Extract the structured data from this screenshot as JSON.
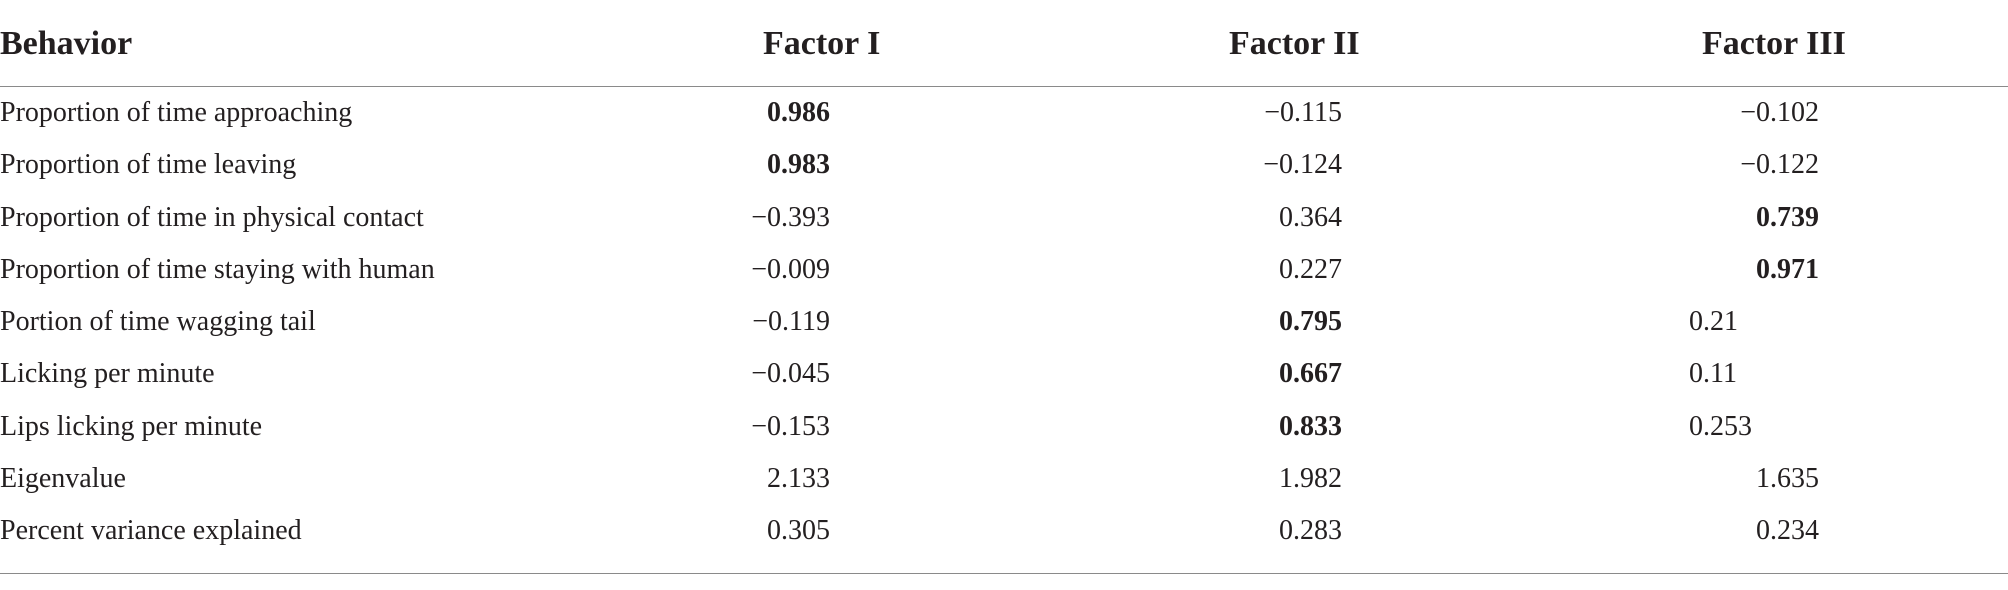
{
  "header": {
    "behavior": "Behavior",
    "factor1": "Factor I",
    "factor2": "Factor II",
    "factor3": "Factor III"
  },
  "rows": [
    {
      "label": "Proportion of time approaching",
      "f1": "0.986",
      "f2": "−0.115",
      "f3": "−0.102",
      "bold": [
        true,
        false,
        false
      ]
    },
    {
      "label": "Proportion of time leaving",
      "f1": "0.983",
      "f2": "−0.124",
      "f3": "−0.122",
      "bold": [
        true,
        false,
        false
      ]
    },
    {
      "label": "Proportion of time in physical contact",
      "f1": "−0.393",
      "f2": "0.364",
      "f3": "0.739",
      "bold": [
        false,
        false,
        true
      ]
    },
    {
      "label": "Proportion of time staying with human",
      "f1": "−0.009",
      "f2": "0.227",
      "f3": "0.971",
      "bold": [
        false,
        false,
        true
      ]
    },
    {
      "label": "Portion of time wagging tail",
      "f1": "−0.119",
      "f2": "0.795",
      "f3": "0.21",
      "bold": [
        false,
        true,
        false
      ]
    },
    {
      "label": "Licking per minute",
      "f1": "−0.045",
      "f2": "0.667",
      "f3": "0.11",
      "bold": [
        false,
        true,
        false
      ]
    },
    {
      "label": "Lips licking per minute",
      "f1": "−0.153",
      "f2": "0.833",
      "f3": "0.253",
      "bold": [
        false,
        true,
        false
      ]
    },
    {
      "label": "Eigenvalue",
      "f1": "2.133",
      "f2": "1.982",
      "f3": "1.635",
      "bold": [
        false,
        false,
        false
      ]
    },
    {
      "label": "Percent variance explained",
      "f1": "0.305",
      "f2": "0.283",
      "f3": "0.234",
      "bold": [
        false,
        false,
        false
      ]
    }
  ]
}
